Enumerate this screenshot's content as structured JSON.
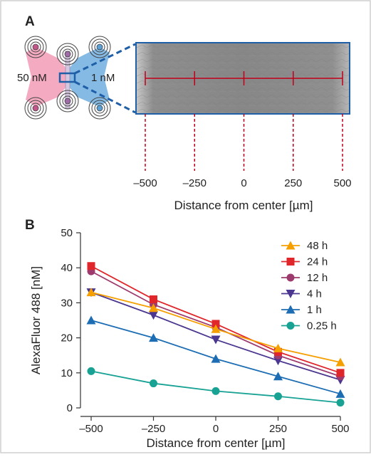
{
  "panel_a": {
    "label": "A",
    "left_conc": "50 nM",
    "right_conc": "1 nM",
    "x_ticks": [
      "–500",
      "–250",
      "0",
      "250",
      "500"
    ],
    "x_tick_values": [
      -500,
      -250,
      0,
      250,
      500
    ],
    "xlabel": "Distance from center [µm]",
    "colors": {
      "pink": "#f3a7bf",
      "blue": "#7db6e3",
      "frame": "#1f5fa8",
      "red_line": "#c0001a"
    }
  },
  "panel_b": {
    "label": "B"
  },
  "chart_data": {
    "type": "line",
    "x": [
      -500,
      -250,
      0,
      250,
      500
    ],
    "xlabel": "Distance from center [µm]",
    "ylabel": "AlexaFluor 488 [nM]",
    "xlim": [
      -500,
      500
    ],
    "ylim": [
      0,
      50
    ],
    "x_ticks": [
      -500,
      -250,
      0,
      250,
      500
    ],
    "x_tick_labels": [
      "–500",
      "–250",
      "0",
      "250",
      "500"
    ],
    "y_ticks": [
      0,
      10,
      20,
      30,
      40,
      50
    ],
    "y_tick_labels": [
      "0",
      "10",
      "20",
      "30",
      "40",
      "50"
    ],
    "grid": false,
    "legend_position": "top-right",
    "series": [
      {
        "name": "48 h",
        "color": "#f5a000",
        "marker": "triangle",
        "values": [
          33,
          28.5,
          22.5,
          17,
          13
        ]
      },
      {
        "name": "24 h",
        "color": "#e0262b",
        "marker": "square",
        "values": [
          40.5,
          31,
          24,
          16,
          10
        ]
      },
      {
        "name": "12 h",
        "color": "#9e3b6e",
        "marker": "circle",
        "values": [
          39,
          29.5,
          23,
          15,
          9
        ]
      },
      {
        "name": "4 h",
        "color": "#4b3690",
        "marker": "triangle-down",
        "values": [
          33,
          26.5,
          19.5,
          13.5,
          8
        ]
      },
      {
        "name": "1 h",
        "color": "#1c6db3",
        "marker": "triangle",
        "values": [
          25,
          20,
          14,
          9,
          4
        ]
      },
      {
        "name": "0.25 h",
        "color": "#17a294",
        "marker": "circle",
        "values": [
          10.5,
          7,
          4.8,
          3.3,
          1.5
        ]
      }
    ]
  }
}
